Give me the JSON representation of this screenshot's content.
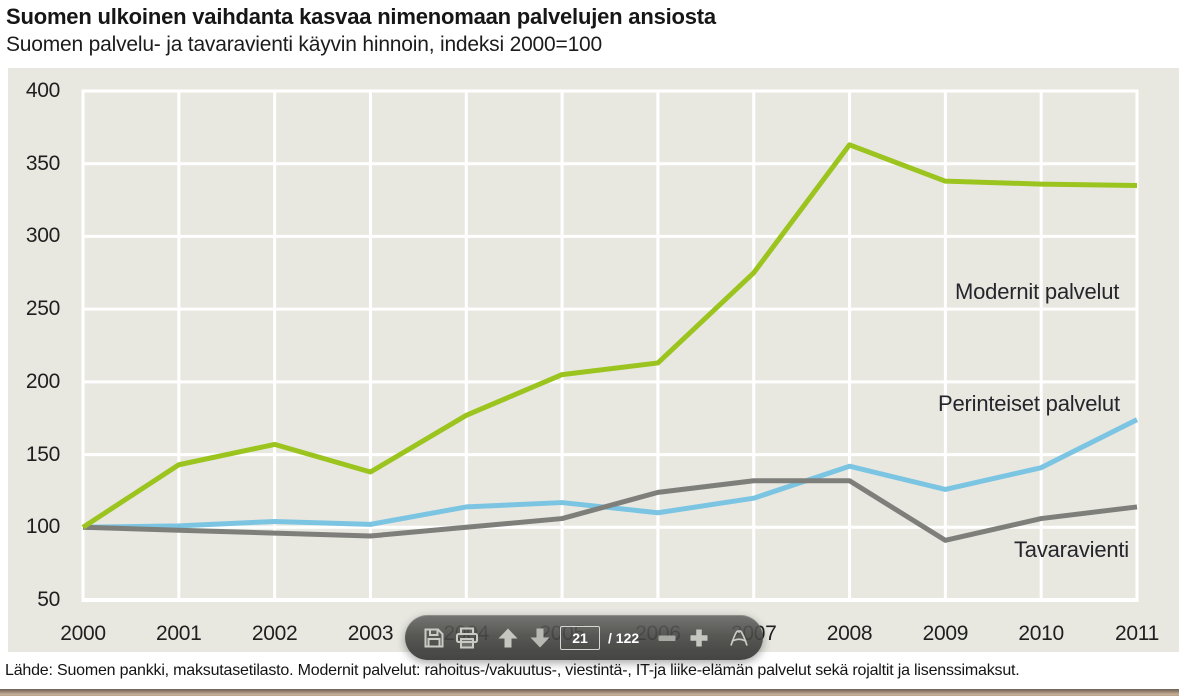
{
  "header": {
    "title": "Suomen ulkoinen vaihdanta kasvaa nimenomaan palvelujen ansiosta",
    "subtitle": "Suomen palvelu- ja tavaravienti käyvin hinnoin, indeksi 2000=100"
  },
  "chart_data": {
    "type": "line",
    "title": "Suomen ulkoinen vaihdanta kasvaa nimenomaan palvelujen ansiosta",
    "subtitle": "Suomen palvelu- ja tavaravienti käyvin hinnoin, indeksi 2000=100",
    "x": [
      2000,
      2001,
      2002,
      2003,
      2004,
      2005,
      2006,
      2007,
      2008,
      2009,
      2010,
      2011
    ],
    "series": [
      {
        "name": "Modernit palvelut",
        "color": "#9cc41e",
        "values": [
          100,
          143,
          157,
          138,
          177,
          205,
          213,
          275,
          363,
          338,
          336,
          335
        ]
      },
      {
        "name": "Perinteiset palvelut",
        "color": "#7cc5e2",
        "values": [
          100,
          101,
          104,
          102,
          114,
          117,
          110,
          120,
          142,
          126,
          141,
          174
        ]
      },
      {
        "name": "Tavaravienti",
        "color": "#7e7e7b",
        "values": [
          100,
          98,
          96,
          94,
          100,
          106,
          124,
          132,
          132,
          91,
          106,
          114
        ]
      }
    ],
    "ylim": [
      50,
      400
    ],
    "ytick_step": 50,
    "xlabel": "",
    "ylabel": "",
    "grid": true,
    "plot_background": "#e8e8e1",
    "gridline_color": "#ffffff",
    "legend_position": "inline-labels-right"
  },
  "toolbar": {
    "page_current": "21",
    "page_total_label": "/ 122",
    "buttons": [
      "save",
      "print",
      "previous-page",
      "next-page",
      "page-number",
      "zoom-out",
      "zoom-in",
      "acrobat"
    ]
  },
  "footer": {
    "source": "Lähde: Suomen pankki, maksutasetilasto. Modernit palvelut: rahoitus-/vakuutus-, viestintä-, IT-ja liike-elämän palvelut sekä rojaltit ja lisenssimaksut."
  },
  "colors": {
    "chart_background": "#e8e8e1",
    "gridline": "#ffffff",
    "bottom_bar": "#b5a089",
    "toolbar_background": "#484846"
  }
}
